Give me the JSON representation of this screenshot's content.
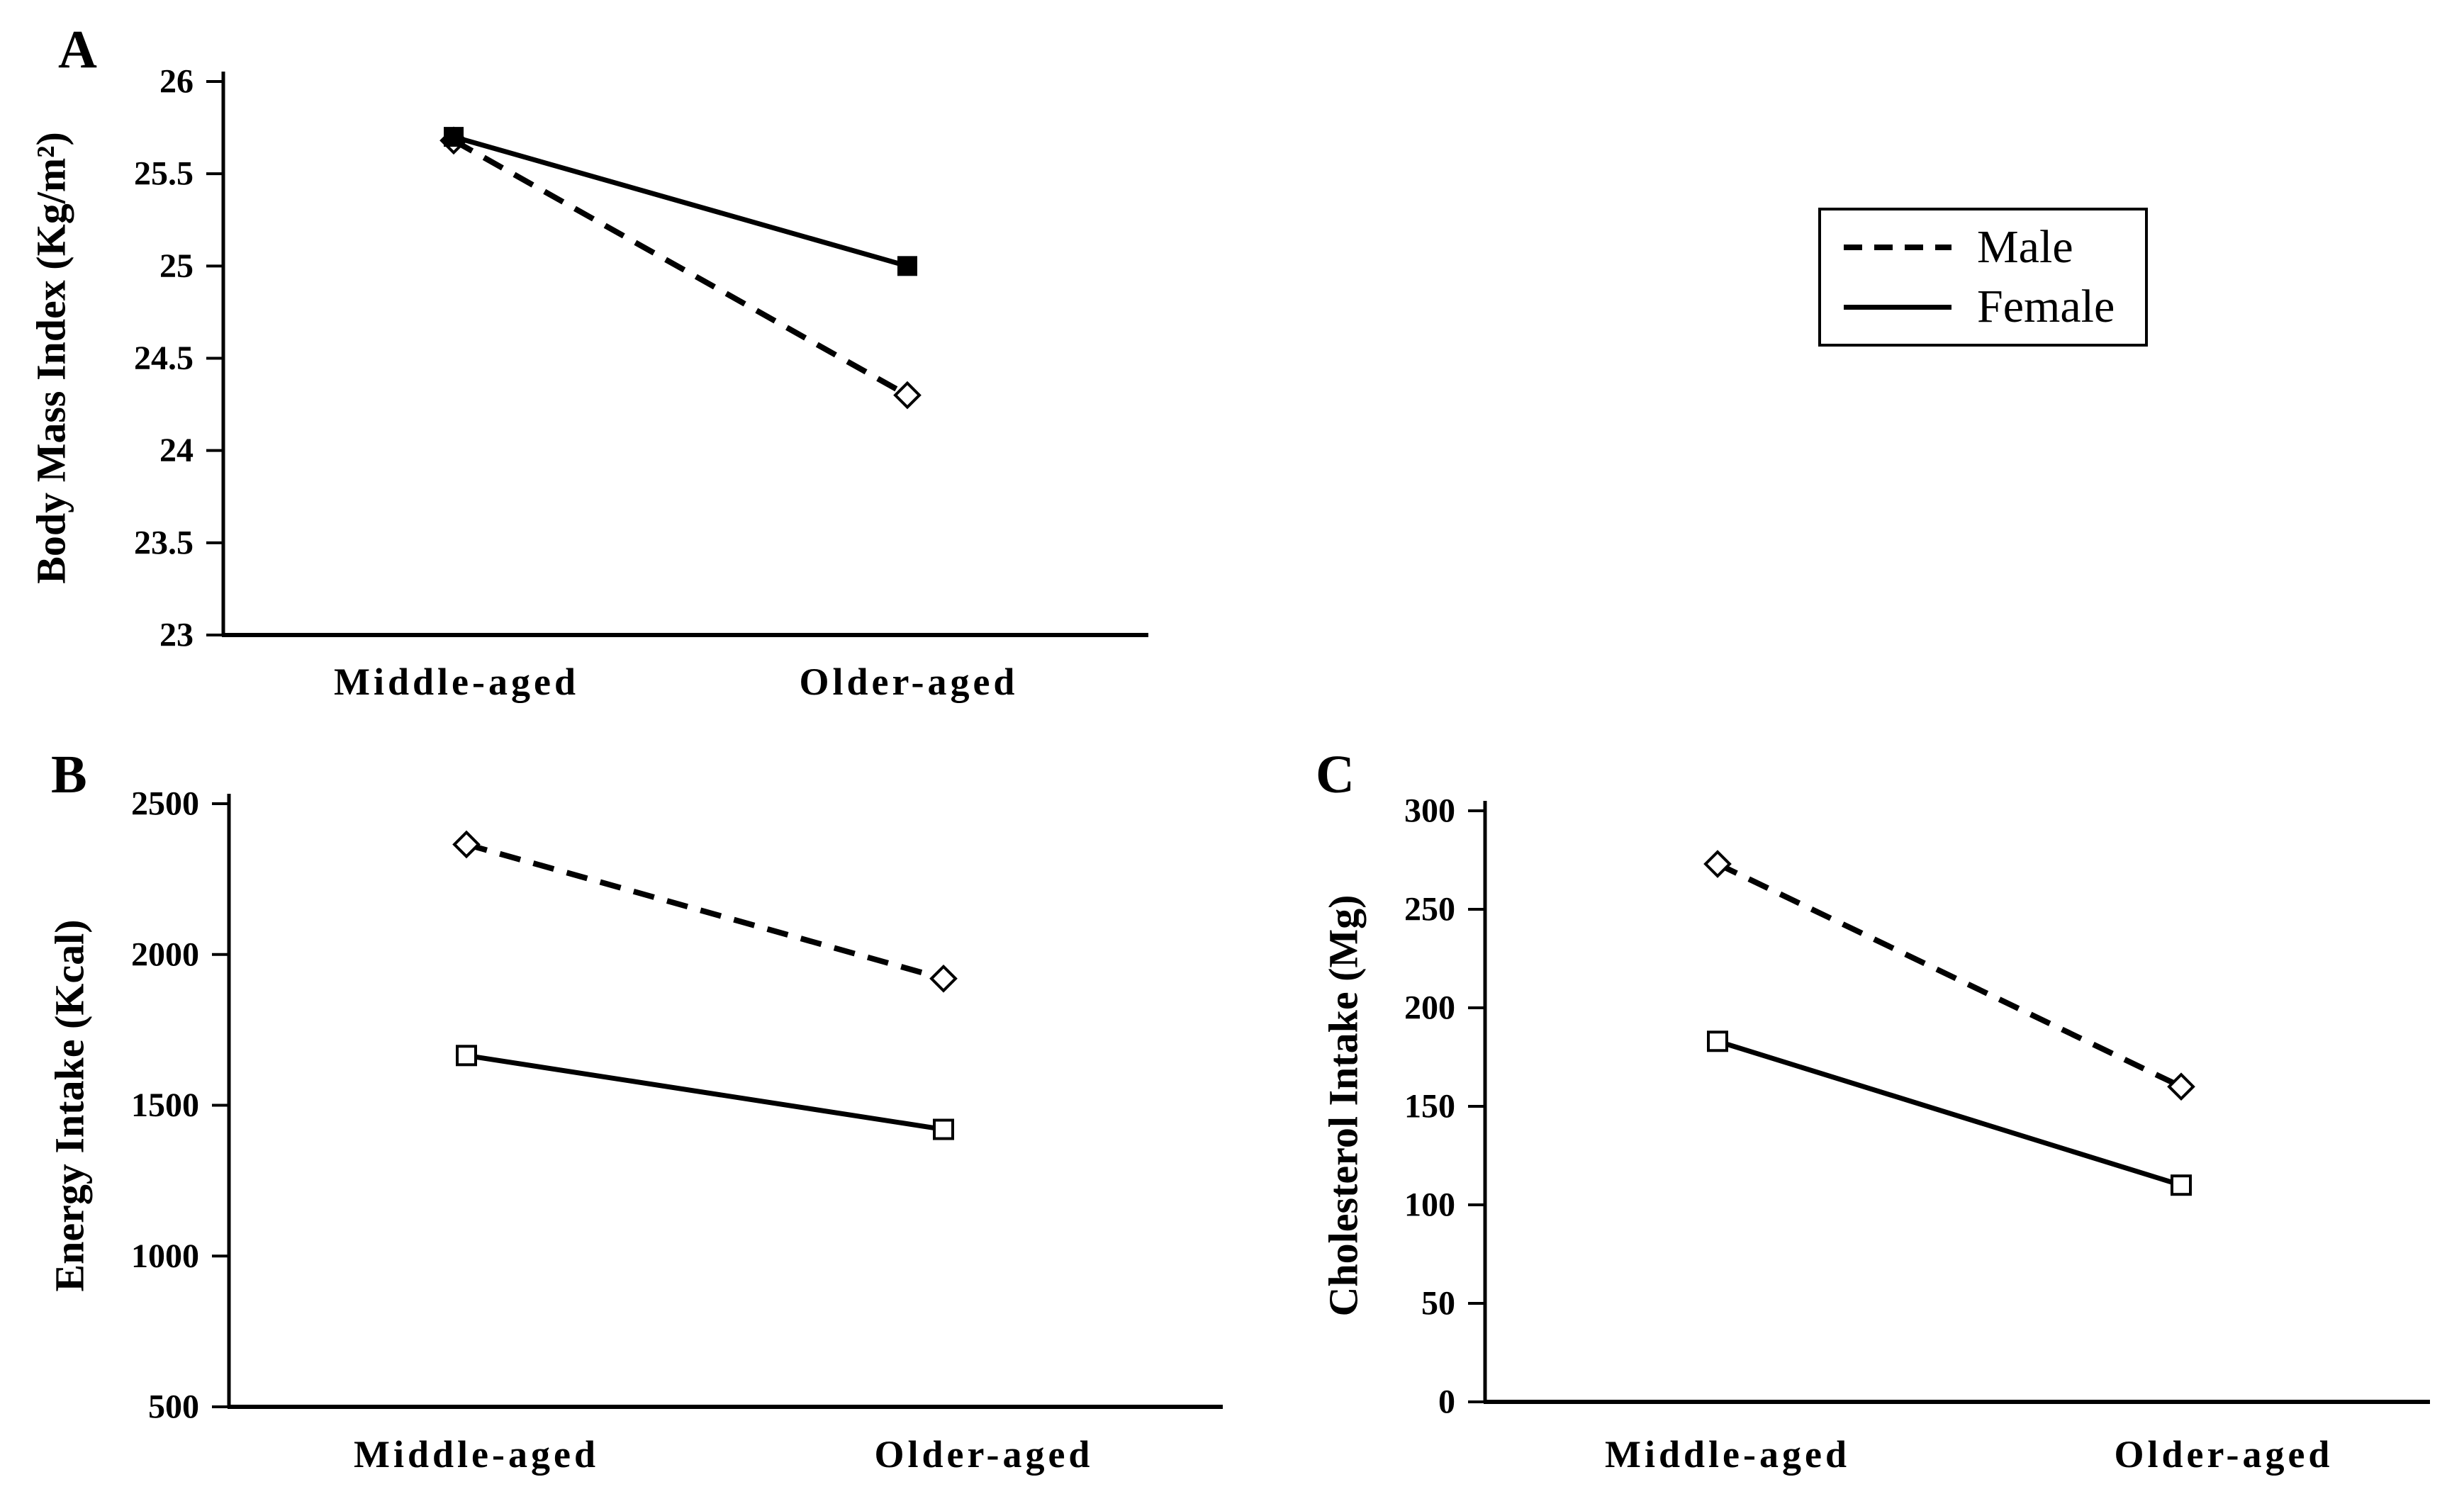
{
  "figure": {
    "background": "#ffffff",
    "ink_color": "#000000",
    "categories": [
      "Middle-aged",
      "Older-aged"
    ],
    "legend": {
      "position": "top-right",
      "items": [
        {
          "label": "Male",
          "line_style": "dashed"
        },
        {
          "label": "Female",
          "line_style": "solid"
        }
      ]
    }
  },
  "chart_data": [
    {
      "type": "line",
      "panel_label": "A",
      "ylabel": "Body Mass Index (Kg/m²)",
      "xlabel": "",
      "categories": [
        "Middle-aged",
        "Older-aged"
      ],
      "ylim": [
        23,
        26
      ],
      "yticks": [
        26,
        25.5,
        25,
        24.5,
        24,
        23.5,
        23
      ],
      "grid": false,
      "series": [
        {
          "name": "Male",
          "line_style": "dashed",
          "marker": "open-diamond",
          "values": [
            25.68,
            24.3
          ]
        },
        {
          "name": "Female",
          "line_style": "solid",
          "marker": "filled-square",
          "values": [
            25.7,
            25.0
          ]
        }
      ]
    },
    {
      "type": "line",
      "panel_label": "B",
      "ylabel": "Energy Intake (Kcal)",
      "xlabel": "",
      "categories": [
        "Middle-aged",
        "Older-aged"
      ],
      "ylim": [
        500,
        2500
      ],
      "yticks": [
        2500,
        2000,
        1500,
        1000,
        500
      ],
      "grid": false,
      "series": [
        {
          "name": "Male",
          "line_style": "dashed",
          "marker": "open-diamond",
          "values": [
            2365,
            1920
          ]
        },
        {
          "name": "Female",
          "line_style": "solid",
          "marker": "open-square",
          "values": [
            1665,
            1420
          ]
        }
      ]
    },
    {
      "type": "line",
      "panel_label": "C",
      "ylabel": "Cholesterol Intake (Mg)",
      "xlabel": "",
      "categories": [
        "Middle-aged",
        "Older-aged"
      ],
      "ylim": [
        0,
        300
      ],
      "yticks": [
        300,
        250,
        200,
        150,
        100,
        50,
        0
      ],
      "grid": false,
      "series": [
        {
          "name": "Male",
          "line_style": "dashed",
          "marker": "open-diamond",
          "values": [
            273,
            160
          ]
        },
        {
          "name": "Female",
          "line_style": "solid",
          "marker": "open-square",
          "values": [
            183,
            110
          ]
        }
      ]
    }
  ]
}
